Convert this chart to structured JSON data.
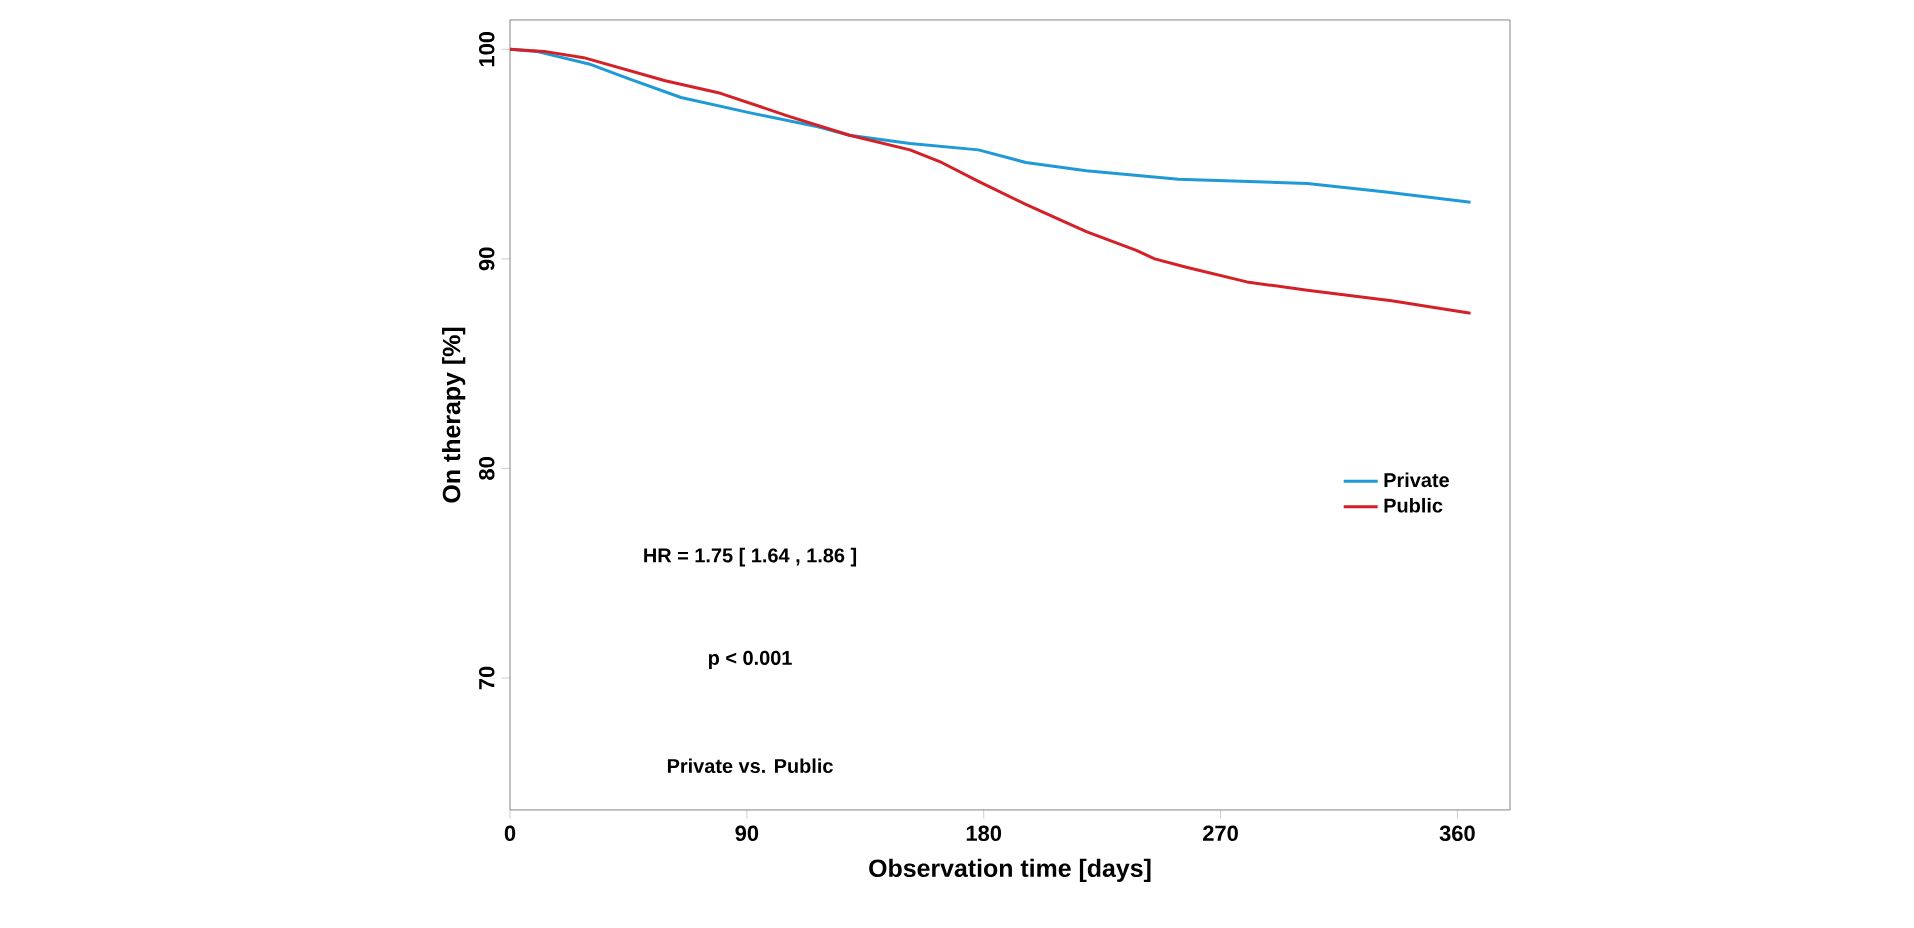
{
  "chart_data": {
    "type": "line",
    "xlabel": "Observation time [days]",
    "ylabel": "On therapy [%]",
    "xlim": [
      0,
      380
    ],
    "ylim": [
      63.7,
      101.4
    ],
    "xticks": [
      0,
      90,
      180,
      270,
      360
    ],
    "yticks": [
      70,
      80,
      90,
      100
    ],
    "series": [
      {
        "name": "Private",
        "color": "#1f9ad6",
        "x": [
          0,
          10,
          30,
          45,
          65,
          90,
          117,
          129,
          152,
          178,
          196,
          219,
          254,
          303,
          332,
          365
        ],
        "values": [
          100,
          99.9,
          99.3,
          98.6,
          97.7,
          97.0,
          96.3,
          95.9,
          95.5,
          95.2,
          94.6,
          94.2,
          93.8,
          93.6,
          93.2,
          92.7
        ]
      },
      {
        "name": "Public",
        "color": "#d42027",
        "x": [
          0,
          13,
          28,
          59,
          80,
          106,
          129,
          152,
          164,
          178,
          196,
          219,
          238,
          245,
          257,
          280,
          303,
          335,
          365
        ],
        "values": [
          100,
          99.9,
          99.6,
          98.5,
          97.9,
          96.8,
          95.9,
          95.2,
          94.6,
          93.7,
          92.6,
          91.3,
          90.4,
          90.0,
          89.6,
          88.9,
          88.5,
          88.0,
          87.4
        ]
      }
    ],
    "legend": "right",
    "grid": false,
    "marker": "none",
    "line_style": "solid",
    "annotations": [
      "HR = 1.75  [ 1.64 , 1.86 ]",
      "p < 0.001",
      "Private vs. Public"
    ]
  }
}
